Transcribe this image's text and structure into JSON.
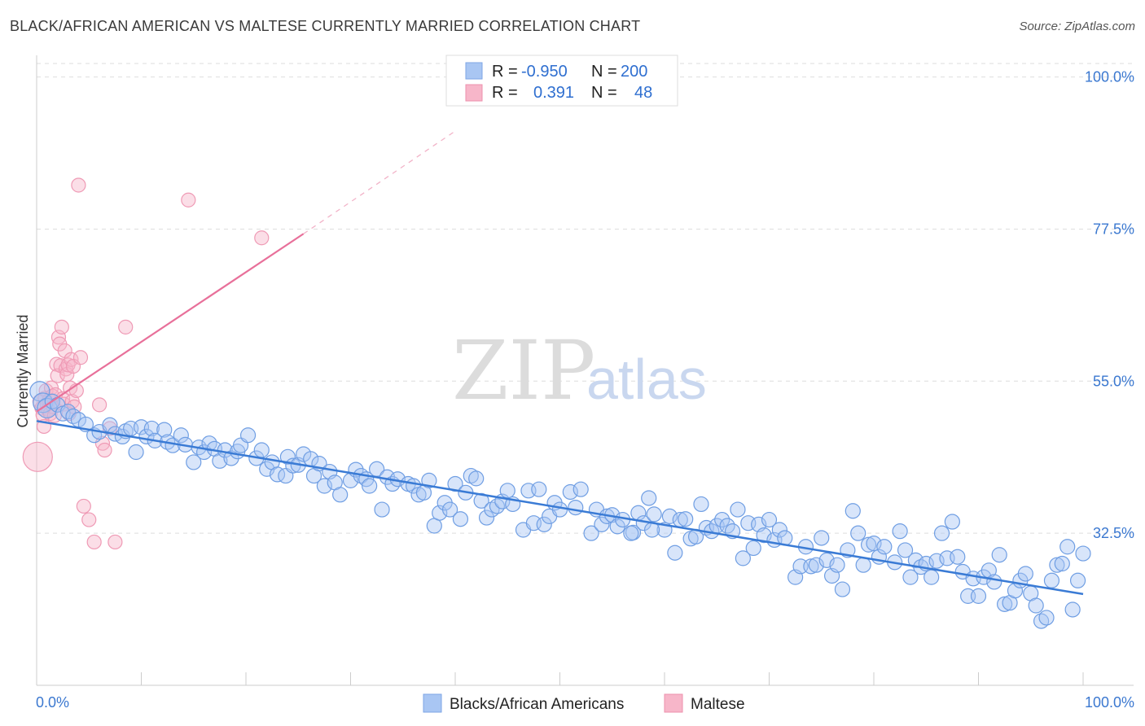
{
  "title": "BLACK/AFRICAN AMERICAN VS MALTESE CURRENTLY MARRIED CORRELATION CHART",
  "source": "Source: ZipAtlas.com",
  "watermark": {
    "zip": "ZIP",
    "atlas": "atlas"
  },
  "legend_top": {
    "rows": [
      {
        "r_label": "R =",
        "r_value": "-0.950",
        "n_label": "N =",
        "n_value": "200",
        "color": "#a9c6f3"
      },
      {
        "r_label": "R =",
        "r_value": "0.391",
        "n_label": "N =",
        "n_value": "48",
        "color": "#f7b6c9"
      }
    ]
  },
  "legend_bottom": {
    "items": [
      {
        "label": "Blacks/African Americans",
        "color": "#a9c6f3"
      },
      {
        "label": "Maltese",
        "color": "#f7b6c9"
      }
    ]
  },
  "chart_data": {
    "type": "scatter",
    "title": "BLACK/AFRICAN AMERICAN VS MALTESE CURRENTLY MARRIED CORRELATION CHART",
    "xlabel": "",
    "ylabel": "Currently Married",
    "xlim": [
      0,
      100
    ],
    "ylim": [
      10,
      102
    ],
    "x_tick_labels": [
      "0.0%",
      "100.0%"
    ],
    "y_ticks": [
      32.5,
      55.0,
      77.5,
      100.0
    ],
    "y_tick_labels": [
      "32.5%",
      "55.0%",
      "77.5%",
      "100.0%"
    ],
    "grid": true,
    "legend_position": "top-center",
    "colors": {
      "blue": "#3a7bd5",
      "pink": "#e8709a",
      "blue_fill": "#a9c6f3",
      "pink_fill": "#f7b6c9"
    },
    "series": [
      {
        "name": "Blacks/African Americans",
        "R": -0.95,
        "N": 200,
        "trend": {
          "x": [
            0,
            100
          ],
          "y": [
            49.1,
            23.5
          ]
        },
        "points": [
          [
            0.3,
            53.5
          ],
          [
            0.6,
            51.8
          ],
          [
            1.0,
            51.0
          ],
          [
            1.5,
            52.0
          ],
          [
            2.0,
            51.5
          ],
          [
            2.5,
            50.2
          ],
          [
            3.0,
            50.5
          ],
          [
            3.5,
            49.8
          ],
          [
            4.0,
            49.3
          ],
          [
            4.7,
            48.6
          ],
          [
            5.5,
            47.0
          ],
          [
            6.0,
            47.5
          ],
          [
            7.0,
            48.5
          ],
          [
            7.5,
            47.2
          ],
          [
            8.2,
            46.8
          ],
          [
            8.5,
            47.6
          ],
          [
            9.0,
            48.0
          ],
          [
            9.5,
            44.5
          ],
          [
            10.0,
            48.2
          ],
          [
            10.5,
            46.8
          ],
          [
            11.0,
            48.0
          ],
          [
            11.3,
            46.2
          ],
          [
            12.2,
            47.8
          ],
          [
            12.5,
            46.0
          ],
          [
            13.0,
            45.5
          ],
          [
            13.8,
            47.0
          ],
          [
            14.2,
            45.6
          ],
          [
            15.0,
            43.0
          ],
          [
            15.5,
            45.2
          ],
          [
            16.0,
            44.5
          ],
          [
            16.5,
            45.8
          ],
          [
            17.0,
            45.0
          ],
          [
            17.5,
            43.2
          ],
          [
            18.0,
            44.8
          ],
          [
            18.6,
            43.6
          ],
          [
            19.2,
            44.6
          ],
          [
            19.5,
            45.5
          ],
          [
            20.2,
            47.0
          ],
          [
            21.0,
            43.6
          ],
          [
            21.5,
            44.8
          ],
          [
            22.0,
            42.0
          ],
          [
            22.5,
            43.0
          ],
          [
            23.0,
            41.2
          ],
          [
            23.8,
            41.0
          ],
          [
            24.0,
            43.8
          ],
          [
            24.5,
            42.5
          ],
          [
            25.0,
            42.6
          ],
          [
            25.5,
            44.2
          ],
          [
            26.2,
            43.5
          ],
          [
            26.5,
            41.0
          ],
          [
            27.0,
            42.8
          ],
          [
            27.5,
            39.5
          ],
          [
            28.0,
            41.6
          ],
          [
            28.5,
            40.0
          ],
          [
            29.0,
            38.2
          ],
          [
            30.0,
            40.3
          ],
          [
            30.5,
            41.9
          ],
          [
            31.0,
            41.0
          ],
          [
            31.5,
            40.5
          ],
          [
            31.8,
            39.5
          ],
          [
            32.5,
            42.0
          ],
          [
            33.0,
            36.0
          ],
          [
            33.5,
            40.8
          ],
          [
            34.0,
            39.8
          ],
          [
            34.5,
            40.5
          ],
          [
            35.5,
            39.8
          ],
          [
            36.0,
            39.5
          ],
          [
            36.5,
            38.2
          ],
          [
            37.0,
            38.5
          ],
          [
            37.5,
            40.3
          ],
          [
            38.0,
            33.6
          ],
          [
            38.5,
            35.5
          ],
          [
            39.0,
            37.0
          ],
          [
            39.5,
            36.0
          ],
          [
            40.0,
            39.8
          ],
          [
            40.5,
            34.6
          ],
          [
            41.0,
            38.5
          ],
          [
            41.5,
            41.0
          ],
          [
            42.0,
            40.6
          ],
          [
            42.5,
            37.3
          ],
          [
            43.0,
            34.8
          ],
          [
            43.5,
            36.0
          ],
          [
            44.0,
            36.5
          ],
          [
            44.5,
            37.2
          ],
          [
            45.0,
            38.8
          ],
          [
            45.5,
            36.8
          ],
          [
            46.5,
            33.0
          ],
          [
            47.0,
            38.8
          ],
          [
            47.5,
            34.0
          ],
          [
            48.0,
            39.0
          ],
          [
            48.5,
            33.8
          ],
          [
            49.0,
            35.0
          ],
          [
            49.5,
            37.0
          ],
          [
            50.0,
            36.0
          ],
          [
            51.0,
            38.6
          ],
          [
            51.5,
            36.3
          ],
          [
            52.0,
            39.0
          ],
          [
            53.0,
            32.5
          ],
          [
            53.5,
            36.0
          ],
          [
            54.0,
            33.8
          ],
          [
            54.5,
            35.0
          ],
          [
            55.0,
            35.2
          ],
          [
            55.5,
            33.5
          ],
          [
            56.0,
            34.5
          ],
          [
            57.0,
            32.6
          ],
          [
            57.5,
            35.5
          ],
          [
            58.0,
            34.0
          ],
          [
            58.5,
            37.7
          ],
          [
            59.0,
            35.3
          ],
          [
            60.0,
            33.0
          ],
          [
            60.5,
            35.0
          ],
          [
            61.0,
            29.6
          ],
          [
            61.5,
            34.5
          ],
          [
            62.0,
            34.6
          ],
          [
            62.5,
            31.7
          ],
          [
            63.0,
            32.0
          ],
          [
            63.5,
            36.8
          ],
          [
            64.0,
            33.3
          ],
          [
            64.5,
            32.8
          ],
          [
            65.0,
            33.6
          ],
          [
            65.5,
            34.5
          ],
          [
            66.0,
            33.6
          ],
          [
            66.5,
            32.8
          ],
          [
            67.0,
            36.0
          ],
          [
            67.5,
            28.8
          ],
          [
            68.0,
            34.0
          ],
          [
            68.5,
            30.3
          ],
          [
            69.0,
            33.8
          ],
          [
            69.5,
            32.2
          ],
          [
            70.0,
            34.5
          ],
          [
            70.5,
            31.5
          ],
          [
            71.0,
            33.0
          ],
          [
            71.5,
            31.8
          ],
          [
            72.5,
            26.0
          ],
          [
            73.0,
            27.6
          ],
          [
            73.5,
            30.5
          ],
          [
            74.0,
            27.6
          ],
          [
            74.5,
            27.8
          ],
          [
            75.0,
            31.8
          ],
          [
            75.5,
            28.5
          ],
          [
            76.0,
            26.2
          ],
          [
            76.5,
            27.8
          ],
          [
            77.0,
            24.2
          ],
          [
            77.5,
            30.0
          ],
          [
            78.0,
            35.8
          ],
          [
            78.5,
            32.5
          ],
          [
            79.0,
            27.8
          ],
          [
            79.5,
            30.8
          ],
          [
            80.0,
            31.0
          ],
          [
            80.5,
            29.0
          ],
          [
            81.0,
            30.5
          ],
          [
            82.0,
            28.2
          ],
          [
            82.5,
            32.8
          ],
          [
            83.0,
            30.0
          ],
          [
            83.5,
            26.0
          ],
          [
            84.0,
            28.5
          ],
          [
            84.5,
            27.5
          ],
          [
            85.0,
            28.0
          ],
          [
            85.5,
            26.0
          ],
          [
            86.0,
            28.4
          ],
          [
            86.5,
            32.5
          ],
          [
            87.0,
            28.8
          ],
          [
            87.5,
            34.2
          ],
          [
            88.0,
            29.0
          ],
          [
            88.5,
            26.8
          ],
          [
            89.0,
            23.2
          ],
          [
            89.5,
            25.8
          ],
          [
            90.0,
            23.2
          ],
          [
            90.5,
            26.0
          ],
          [
            91.0,
            27.0
          ],
          [
            91.5,
            25.3
          ],
          [
            92.0,
            29.3
          ],
          [
            92.5,
            22.0
          ],
          [
            93.0,
            22.2
          ],
          [
            93.5,
            24.0
          ],
          [
            94.0,
            25.5
          ],
          [
            94.5,
            26.5
          ],
          [
            95.0,
            23.6
          ],
          [
            95.5,
            21.8
          ],
          [
            96.0,
            19.5
          ],
          [
            96.5,
            20.0
          ],
          [
            97.0,
            25.5
          ],
          [
            97.5,
            27.8
          ],
          [
            98.0,
            28.0
          ],
          [
            98.5,
            30.5
          ],
          [
            99.0,
            21.2
          ],
          [
            99.5,
            25.5
          ],
          [
            100.0,
            29.5
          ],
          [
            56.8,
            32.5
          ],
          [
            58.8,
            33.0
          ]
        ]
      },
      {
        "name": "Maltese",
        "R": 0.391,
        "N": 48,
        "trend": {
          "x": [
            0,
            25.5
          ],
          "y": [
            50.5,
            76.8
          ],
          "dashed_x": [
            25.5,
            40
          ],
          "dashed_y": [
            76.8,
            92
          ]
        },
        "points": [
          [
            0.1,
            43.8
          ],
          [
            0.3,
            52.0
          ],
          [
            0.5,
            51.0
          ],
          [
            0.6,
            50.0
          ],
          [
            0.7,
            48.3
          ],
          [
            0.8,
            52.5
          ],
          [
            0.9,
            53.6
          ],
          [
            1.0,
            51.5
          ],
          [
            1.1,
            50.8
          ],
          [
            1.2,
            52.2
          ],
          [
            1.3,
            50.2
          ],
          [
            1.4,
            54.0
          ],
          [
            1.5,
            52.8
          ],
          [
            1.6,
            51.2
          ],
          [
            1.7,
            49.9
          ],
          [
            1.8,
            53.0
          ],
          [
            1.9,
            57.5
          ],
          [
            2.0,
            55.8
          ],
          [
            2.1,
            61.5
          ],
          [
            2.2,
            60.5
          ],
          [
            2.3,
            57.3
          ],
          [
            2.4,
            63.0
          ],
          [
            2.5,
            52.4
          ],
          [
            2.6,
            51.6
          ],
          [
            2.7,
            59.5
          ],
          [
            2.8,
            56.8
          ],
          [
            2.9,
            56.0
          ],
          [
            3.0,
            57.4
          ],
          [
            3.1,
            50.2
          ],
          [
            3.2,
            54.0
          ],
          [
            3.3,
            58.2
          ],
          [
            3.4,
            52.0
          ],
          [
            3.5,
            57.2
          ],
          [
            3.6,
            51.2
          ],
          [
            3.8,
            53.6
          ],
          [
            4.0,
            84.0
          ],
          [
            4.2,
            58.5
          ],
          [
            4.5,
            36.5
          ],
          [
            5.0,
            34.5
          ],
          [
            5.5,
            31.2
          ],
          [
            6.0,
            51.5
          ],
          [
            6.3,
            45.8
          ],
          [
            6.5,
            44.8
          ],
          [
            7.0,
            48.0
          ],
          [
            7.5,
            31.2
          ],
          [
            8.5,
            63.0
          ],
          [
            14.5,
            81.8
          ],
          [
            21.5,
            76.2
          ]
        ],
        "sizes": "pt0 large"
      }
    ]
  }
}
